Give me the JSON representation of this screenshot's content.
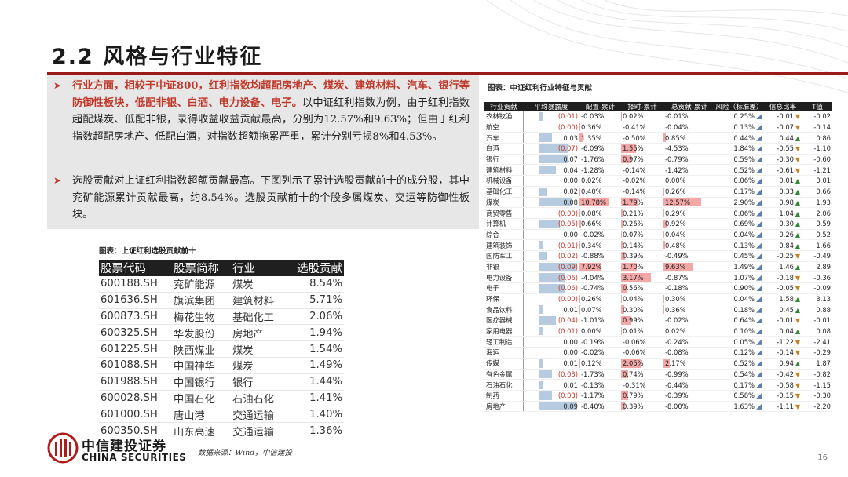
{
  "title": "2.2 风格与行业特征",
  "bullets": [
    {
      "highlight": "行业方面，相较于中证800，红利指数均超配房地产、煤炭、建筑材料、汽车、银行等防御性板块，低配非银、白酒、电力设备、电子。",
      "text": "以中证红利指数为例，由于红利指数超配煤炭、低配非银，录得收益收益贡献最高，分别为12.57%和9.63%；但由于红利指数超配房地产、低配白酒，对指数超额拖累严重，累计分别亏损8%和4.53%。"
    },
    {
      "highlight": "",
      "text": "选股贡献对上证红利指数超额贡献最高。下图列示了累计选股贡献前十的成分股，其中兖矿能源累计贡献最高，约8.54%。选股贡献前十的个股多属煤炭、交运等防御性板块。"
    }
  ],
  "left_table": {
    "caption": "图表：上证红利选股贡献前十",
    "headers": [
      "股票代码",
      "股票简称",
      "行业",
      "选股贡献"
    ],
    "rows": [
      [
        "600188.SH",
        "兖矿能源",
        "煤炭",
        "8.54%"
      ],
      [
        "601636.SH",
        "旗滨集团",
        "建筑材料",
        "5.71%"
      ],
      [
        "600873.SH",
        "梅花生物",
        "基础化工",
        "2.06%"
      ],
      [
        "600325.SH",
        "华发股份",
        "房地产",
        "1.94%"
      ],
      [
        "601225.SH",
        "陕西煤业",
        "煤炭",
        "1.54%"
      ],
      [
        "601088.SH",
        "中国神华",
        "煤炭",
        "1.49%"
      ],
      [
        "601988.SH",
        "中国银行",
        "银行",
        "1.44%"
      ],
      [
        "600028.SH",
        "中国石化",
        "石油石化",
        "1.41%"
      ],
      [
        "601000.SH",
        "唐山港",
        "交通运输",
        "1.40%"
      ],
      [
        "600350.SH",
        "山东高速",
        "交通运输",
        "1.36%"
      ]
    ]
  },
  "right_table": {
    "caption": "图表：中证红利行业特征与贡献",
    "headers": [
      "行业贡献",
      "平均暴露度",
      "配置-累计",
      "择时-累计",
      "总贡献-累计",
      "风险（标准差）",
      "信息比率",
      "T值"
    ],
    "rows": [
      {
        "industry": "农林牧渔",
        "exposure": -0.01,
        "exposure_text": "(0.01)",
        "alloc": -0.03,
        "alloc_text": "-0.03%",
        "timing": 0.02,
        "timing_text": "0.02%",
        "total": -0.01,
        "total_text": "-0.01%",
        "risk": "0.25%",
        "ir": "-0.01",
        "ir_dir": "down",
        "t": "-0.02"
      },
      {
        "industry": "航空",
        "exposure": 0.0,
        "exposure_text": "(0.00)",
        "alloc": 0.36,
        "alloc_text": "0.36%",
        "timing": -0.41,
        "timing_text": "-0.41%",
        "total": -0.04,
        "total_text": "-0.04%",
        "risk": "0.13%",
        "ir": "-0.07",
        "ir_dir": "down",
        "t": "-0.14"
      },
      {
        "industry": "汽车",
        "exposure": 0.03,
        "exposure_text": "0.03",
        "alloc": 1.35,
        "alloc_text": "1.35%",
        "timing": -0.5,
        "timing_text": "-0.50%",
        "total": 0.85,
        "total_text": "0.85%",
        "risk": "0.44%",
        "ir": "0.44",
        "ir_dir": "up",
        "t": "0.86"
      },
      {
        "industry": "白酒",
        "exposure": -0.07,
        "exposure_text": "(0.07)",
        "alloc": -6.09,
        "alloc_text": "-6.09%",
        "timing": 1.55,
        "timing_text": "1.55%",
        "total": -4.53,
        "total_text": "-4.53%",
        "risk": "1.84%",
        "ir": "-0.55",
        "ir_dir": "down",
        "t": "-1.10"
      },
      {
        "industry": "银行",
        "exposure": 0.07,
        "exposure_text": "0.07",
        "alloc": -1.76,
        "alloc_text": "-1.76%",
        "timing": 0.97,
        "timing_text": "0.97%",
        "total": -0.79,
        "total_text": "-0.79%",
        "risk": "0.59%",
        "ir": "-0.30",
        "ir_dir": "down",
        "t": "-0.60"
      },
      {
        "industry": "建筑材料",
        "exposure": 0.04,
        "exposure_text": "0.04",
        "alloc": -1.28,
        "alloc_text": "-1.28%",
        "timing": -0.14,
        "timing_text": "-0.14%",
        "total": -1.42,
        "total_text": "-1.42%",
        "risk": "0.52%",
        "ir": "-0.61",
        "ir_dir": "down",
        "t": "-1.21"
      },
      {
        "industry": "机械设备",
        "exposure": 0.0,
        "exposure_text": "0.00",
        "alloc": 0.02,
        "alloc_text": "0.02%",
        "timing": -0.02,
        "timing_text": "-0.02%",
        "total": 0.0,
        "total_text": "0.00%",
        "risk": "0.06%",
        "ir": "0.01",
        "ir_dir": "up",
        "t": "0.01"
      },
      {
        "industry": "基础化工",
        "exposure": 0.02,
        "exposure_text": "0.02",
        "alloc": 0.4,
        "alloc_text": "0.40%",
        "timing": -0.14,
        "timing_text": "-0.14%",
        "total": 0.26,
        "total_text": "0.26%",
        "risk": "0.17%",
        "ir": "0.33",
        "ir_dir": "up",
        "t": "0.66"
      },
      {
        "industry": "煤炭",
        "exposure": 0.08,
        "exposure_text": "0.08",
        "alloc": 10.78,
        "alloc_text": "10.78%",
        "timing": 1.79,
        "timing_text": "1.79%",
        "total": 12.57,
        "total_text": "12.57%",
        "risk": "2.90%",
        "ir": "0.98",
        "ir_dir": "up",
        "t": "1.93"
      },
      {
        "industry": "商贸零售",
        "exposure": 0.0,
        "exposure_text": "(0.00)",
        "alloc": 0.08,
        "alloc_text": "0.08%",
        "timing": 0.21,
        "timing_text": "0.21%",
        "total": 0.29,
        "total_text": "0.29%",
        "risk": "0.06%",
        "ir": "1.04",
        "ir_dir": "up",
        "t": "2.06"
      },
      {
        "industry": "计算机",
        "exposure": -0.05,
        "exposure_text": "(0.05)",
        "alloc": 0.66,
        "alloc_text": "0.66%",
        "timing": 0.26,
        "timing_text": "0.26%",
        "total": 0.92,
        "total_text": "0.92%",
        "risk": "0.69%",
        "ir": "0.30",
        "ir_dir": "up",
        "t": "0.59"
      },
      {
        "industry": "综合",
        "exposure": 0.0,
        "exposure_text": "0.00",
        "alloc": -0.02,
        "alloc_text": "-0.02%",
        "timing": 0.07,
        "timing_text": "0.07%",
        "total": 0.04,
        "total_text": "0.04%",
        "risk": "0.04%",
        "ir": "0.26",
        "ir_dir": "up",
        "t": "0.52"
      },
      {
        "industry": "建筑装饰",
        "exposure": -0.01,
        "exposure_text": "(0.01)",
        "alloc": 0.34,
        "alloc_text": "0.34%",
        "timing": 0.14,
        "timing_text": "0.14%",
        "total": 0.48,
        "total_text": "0.48%",
        "risk": "0.13%",
        "ir": "0.84",
        "ir_dir": "up",
        "t": "1.66"
      },
      {
        "industry": "国防军工",
        "exposure": -0.02,
        "exposure_text": "(0.02)",
        "alloc": -0.88,
        "alloc_text": "-0.88%",
        "timing": 0.39,
        "timing_text": "0.39%",
        "total": -0.49,
        "total_text": "-0.49%",
        "risk": "0.45%",
        "ir": "-0.25",
        "ir_dir": "down",
        "t": "-0.49"
      },
      {
        "industry": "非银",
        "exposure": -0.09,
        "exposure_text": "(0.09)",
        "alloc": 7.92,
        "alloc_text": "7.92%",
        "timing": 1.7,
        "timing_text": "1.70%",
        "total": 9.63,
        "total_text": "9.63%",
        "risk": "1.49%",
        "ir": "1.46",
        "ir_dir": "up",
        "t": "2.89"
      },
      {
        "industry": "电力设备",
        "exposure": -0.06,
        "exposure_text": "(0.06)",
        "alloc": -4.04,
        "alloc_text": "-4.04%",
        "timing": 3.17,
        "timing_text": "3.17%",
        "total": -0.87,
        "total_text": "-0.87%",
        "risk": "1.07%",
        "ir": "-0.18",
        "ir_dir": "down",
        "t": "-0.36"
      },
      {
        "industry": "电子",
        "exposure": -0.06,
        "exposure_text": "(0.06)",
        "alloc": -0.74,
        "alloc_text": "-0.74%",
        "timing": 0.56,
        "timing_text": "0.56%",
        "total": -0.18,
        "total_text": "-0.18%",
        "risk": "0.90%",
        "ir": "-0.05",
        "ir_dir": "down",
        "t": "-0.09"
      },
      {
        "industry": "环保",
        "exposure": 0.0,
        "exposure_text": "(0.00)",
        "alloc": 0.26,
        "alloc_text": "0.26%",
        "timing": 0.04,
        "timing_text": "0.04%",
        "total": 0.3,
        "total_text": "0.30%",
        "risk": "0.04%",
        "ir": "1.58",
        "ir_dir": "up",
        "t": "3.13"
      },
      {
        "industry": "食品饮料",
        "exposure": 0.01,
        "exposure_text": "0.01",
        "alloc": 0.07,
        "alloc_text": "0.07%",
        "timing": 0.3,
        "timing_text": "0.30%",
        "total": 0.36,
        "total_text": "0.36%",
        "risk": "0.18%",
        "ir": "0.45",
        "ir_dir": "up",
        "t": "0.88"
      },
      {
        "industry": "医疗器械",
        "exposure": -0.04,
        "exposure_text": "(0.04)",
        "alloc": -1.01,
        "alloc_text": "-1.01%",
        "timing": 0.99,
        "timing_text": "0.99%",
        "total": -0.02,
        "total_text": "-0.02%",
        "risk": "0.64%",
        "ir": "-0.01",
        "ir_dir": "down",
        "t": "-0.01"
      },
      {
        "industry": "家用电器",
        "exposure": -0.01,
        "exposure_text": "(0.01)",
        "alloc": 0.0,
        "alloc_text": "0.00%",
        "timing": 0.01,
        "timing_text": "0.01%",
        "total": 0.02,
        "total_text": "0.02%",
        "risk": "0.10%",
        "ir": "0.04",
        "ir_dir": "up",
        "t": "0.08"
      },
      {
        "industry": "轻工制造",
        "exposure": 0.0,
        "exposure_text": "0.00",
        "alloc": -0.19,
        "alloc_text": "-0.19%",
        "timing": -0.06,
        "timing_text": "-0.06%",
        "total": -0.24,
        "total_text": "-0.24%",
        "risk": "0.05%",
        "ir": "-1.22",
        "ir_dir": "down",
        "t": "-2.41"
      },
      {
        "industry": "海运",
        "exposure": 0.0,
        "exposure_text": "0.00",
        "alloc": -0.02,
        "alloc_text": "-0.02%",
        "timing": -0.06,
        "timing_text": "-0.06%",
        "total": -0.08,
        "total_text": "-0.08%",
        "risk": "0.12%",
        "ir": "-0.14",
        "ir_dir": "down",
        "t": "-0.29"
      },
      {
        "industry": "传媒",
        "exposure": 0.01,
        "exposure_text": "0.01",
        "alloc": 0.12,
        "alloc_text": "0.12%",
        "timing": 2.05,
        "timing_text": "2.05%",
        "total": 2.17,
        "total_text": "2.17%",
        "risk": "0.52%",
        "ir": "0.94",
        "ir_dir": "up",
        "t": "1.87"
      },
      {
        "industry": "有色金属",
        "exposure": -0.03,
        "exposure_text": "(0.03)",
        "alloc": -1.73,
        "alloc_text": "-1.73%",
        "timing": 0.74,
        "timing_text": "0.74%",
        "total": -0.99,
        "total_text": "-0.99%",
        "risk": "0.54%",
        "ir": "-0.42",
        "ir_dir": "down",
        "t": "-0.82"
      },
      {
        "industry": "石油石化",
        "exposure": 0.01,
        "exposure_text": "0.01",
        "alloc": -0.13,
        "alloc_text": "-0.13%",
        "timing": -0.31,
        "timing_text": "-0.31%",
        "total": -0.44,
        "total_text": "-0.44%",
        "risk": "0.17%",
        "ir": "-0.58",
        "ir_dir": "down",
        "t": "-1.15"
      },
      {
        "industry": "制药",
        "exposure": -0.03,
        "exposure_text": "(0.03)",
        "alloc": -1.17,
        "alloc_text": "-1.17%",
        "timing": 0.79,
        "timing_text": "0.79%",
        "total": -0.39,
        "total_text": "-0.39%",
        "risk": "0.58%",
        "ir": "-0.15",
        "ir_dir": "down",
        "t": "-0.30"
      },
      {
        "industry": "房地产",
        "exposure": 0.09,
        "exposure_text": "0.09",
        "alloc": -8.4,
        "alloc_text": "-8.40%",
        "timing": 0.39,
        "timing_text": "0.39%",
        "total": -8.0,
        "total_text": "-8.00%",
        "risk": "1.63%",
        "ir": "-1.11",
        "ir_dir": "down",
        "t": "-2.20"
      }
    ]
  },
  "footer": {
    "logo_cn": "中信建投证券",
    "logo_en": "CHINA SECURITIES",
    "source": "数据来源：Wind，中信建投",
    "page": "16"
  },
  "colors": {
    "accent": "#c0392b",
    "title_rule": "#9b1b1b",
    "bar_blue": "#b6cbe0",
    "bar_red": "#f4a7a7",
    "icon_blue": "#5b7fb0"
  }
}
